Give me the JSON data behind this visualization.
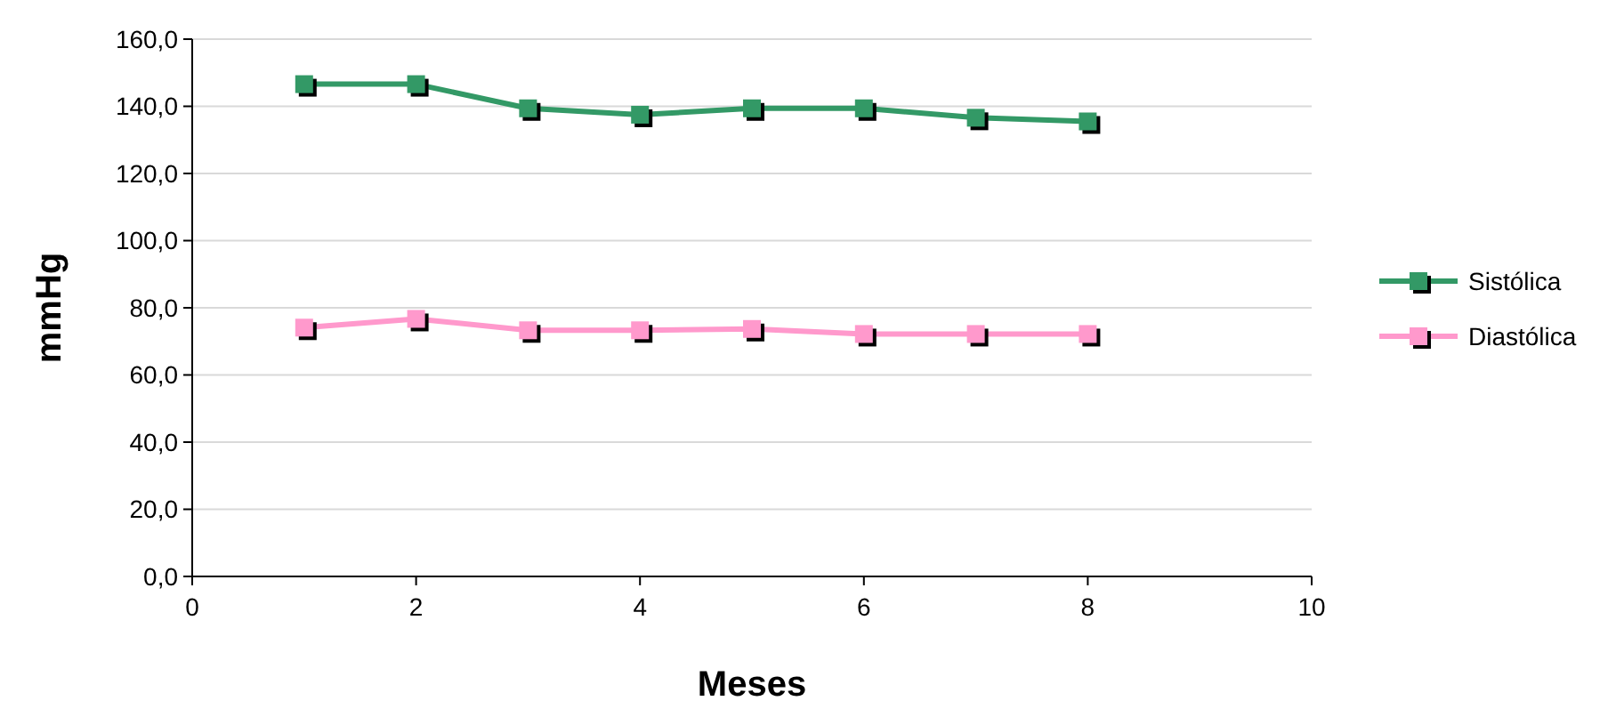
{
  "chart_data": {
    "type": "line",
    "xlabel": "Meses",
    "ylabel": "mmHg",
    "x": [
      1,
      2,
      3,
      4,
      5,
      6,
      7,
      8
    ],
    "series": [
      {
        "name": "Sistólica",
        "color": "#339966",
        "values": [
          146.6,
          146.6,
          139.4,
          137.5,
          139.4,
          139.4,
          136.6,
          135.5
        ]
      },
      {
        "name": "Diastólica",
        "color": "#ff99cc",
        "values": [
          74.1,
          76.7,
          73.3,
          73.3,
          73.7,
          72.2,
          72.2,
          72.2
        ]
      }
    ],
    "xlim": [
      0,
      10
    ],
    "xticks": [
      0,
      2,
      4,
      6,
      8,
      10
    ],
    "ylim": [
      0,
      160
    ],
    "yticks": [
      {
        "value": 0,
        "label": "0,0"
      },
      {
        "value": 20,
        "label": "20,0"
      },
      {
        "value": 40,
        "label": "40,0"
      },
      {
        "value": 60,
        "label": "60,0"
      },
      {
        "value": 80,
        "label": "80,0"
      },
      {
        "value": 100,
        "label": "100,0"
      },
      {
        "value": 120,
        "label": "120,0"
      },
      {
        "value": 140,
        "label": "140,0"
      },
      {
        "value": 160,
        "label": "160,0"
      }
    ],
    "grid": "y",
    "legend": "right",
    "marker": "square",
    "line_style": "solid"
  }
}
